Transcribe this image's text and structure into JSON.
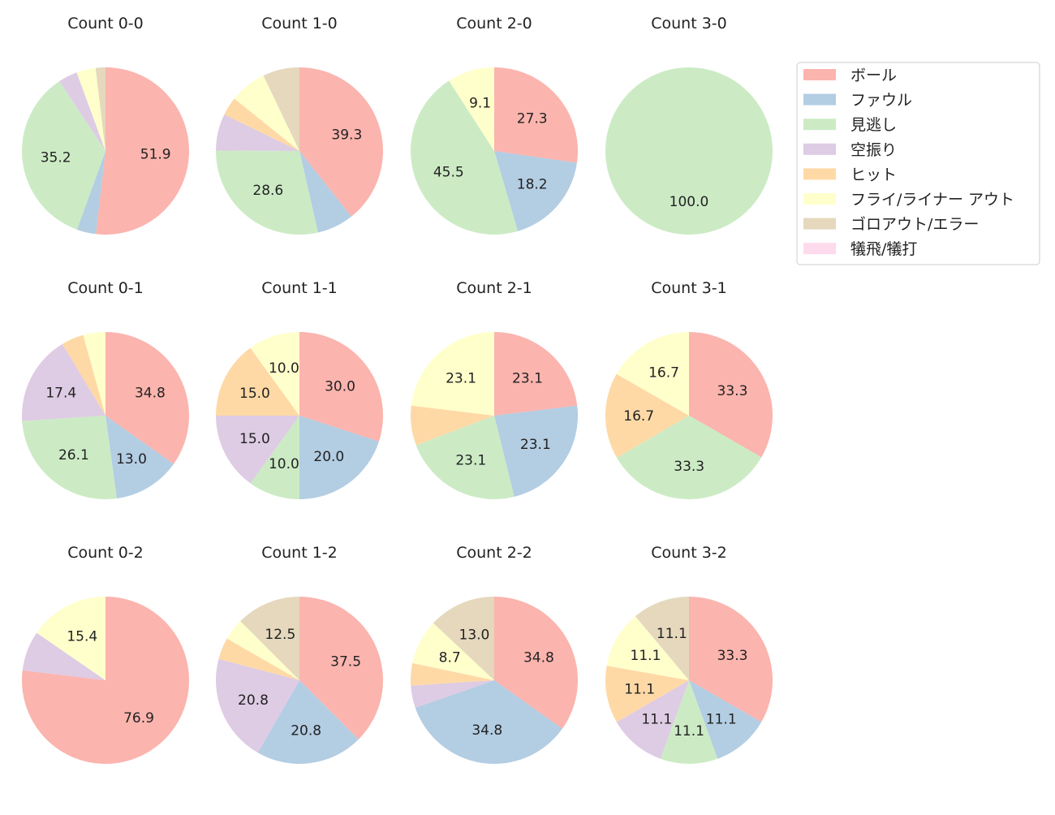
{
  "chart_data": {
    "type": "pie",
    "start_angle_deg": 90,
    "direction": "clockwise",
    "legend_position": "right",
    "categories": [
      "ボール",
      "ファウル",
      "見逃し",
      "空振り",
      "ヒット",
      "フライ/ライナー アウト",
      "ゴロアウト/エラー",
      "犠飛/犠打"
    ],
    "colors": [
      "#fbb4ae",
      "#b3cde3",
      "#ccebc5",
      "#decbe4",
      "#fed9a6",
      "#ffffcc",
      "#e5d8bd",
      "#fddaec"
    ],
    "charts": [
      {
        "title": "Count 0-0",
        "values": [
          51.9,
          3.7,
          35.2,
          3.7,
          0,
          3.7,
          1.9,
          0
        ]
      },
      {
        "title": "Count 1-0",
        "values": [
          39.3,
          7.1,
          28.6,
          7.1,
          3.6,
          7.1,
          7.1,
          0
        ]
      },
      {
        "title": "Count 2-0",
        "values": [
          27.3,
          18.2,
          45.5,
          0,
          0,
          9.1,
          0,
          0
        ]
      },
      {
        "title": "Count 3-0",
        "values": [
          0,
          0,
          100.0,
          0,
          0,
          0,
          0,
          0
        ]
      },
      {
        "title": "Count 0-1",
        "values": [
          34.8,
          13.0,
          26.1,
          17.4,
          4.3,
          4.3,
          0,
          0
        ]
      },
      {
        "title": "Count 1-1",
        "values": [
          30.0,
          20.0,
          10.0,
          15.0,
          15.0,
          10.0,
          0,
          0
        ]
      },
      {
        "title": "Count 2-1",
        "values": [
          23.1,
          23.1,
          23.1,
          0,
          7.7,
          23.1,
          0,
          0
        ]
      },
      {
        "title": "Count 3-1",
        "values": [
          33.3,
          0,
          33.3,
          0,
          16.7,
          16.7,
          0,
          0
        ]
      },
      {
        "title": "Count 0-2",
        "values": [
          76.9,
          0,
          0,
          7.7,
          0,
          15.4,
          0,
          0
        ]
      },
      {
        "title": "Count 1-2",
        "values": [
          37.5,
          20.8,
          0,
          20.8,
          4.2,
          4.2,
          12.5,
          0
        ]
      },
      {
        "title": "Count 2-2",
        "values": [
          34.8,
          34.8,
          0,
          4.3,
          4.3,
          8.7,
          13.0,
          0
        ]
      },
      {
        "title": "Count 3-2",
        "values": [
          33.3,
          11.1,
          11.1,
          11.1,
          11.1,
          11.1,
          11.1,
          0
        ]
      }
    ]
  }
}
